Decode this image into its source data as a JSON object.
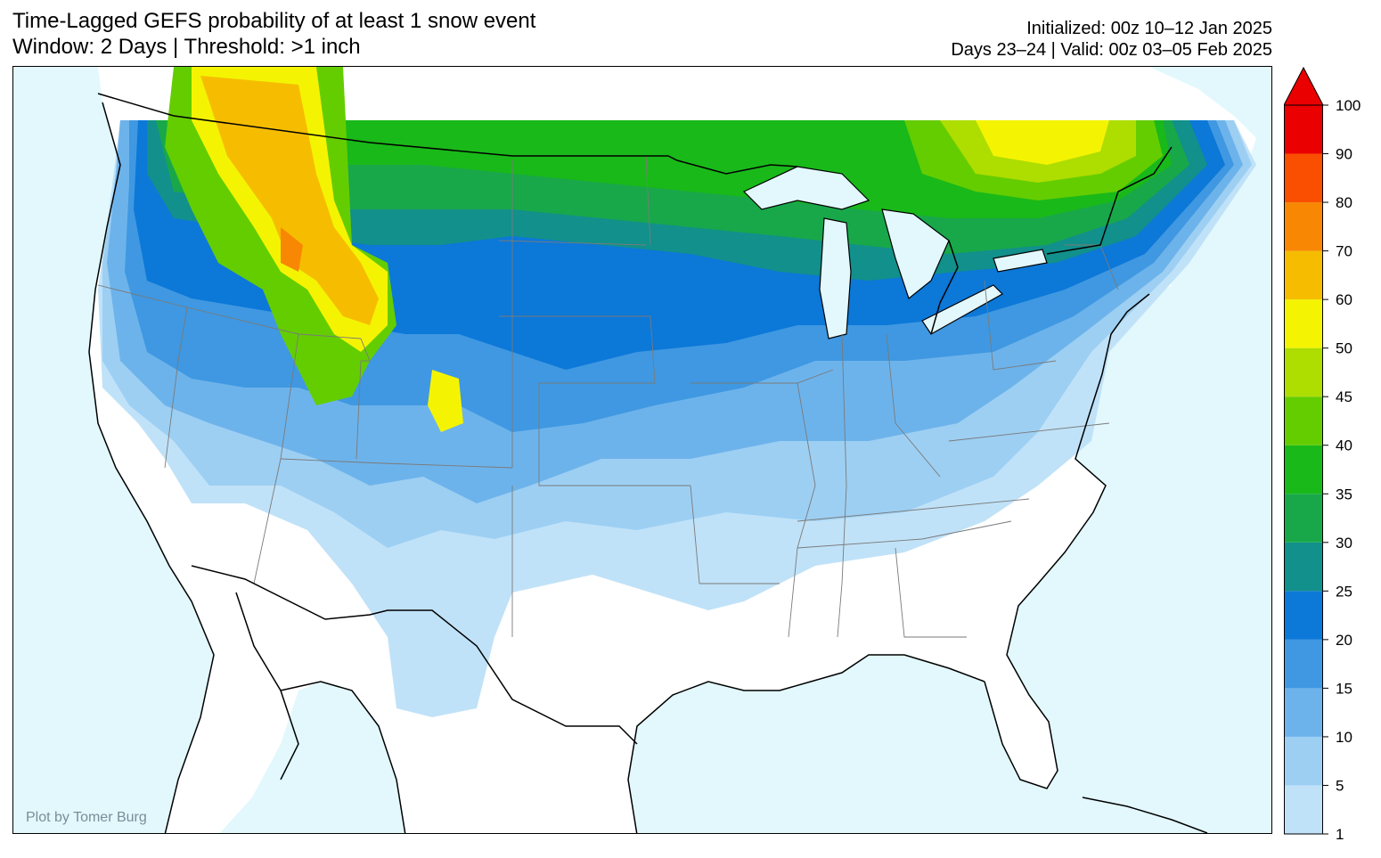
{
  "title": {
    "line1": "Time-Lagged GEFS probability of at least 1 snow event",
    "line2": "Window: 2 Days | Threshold: >1 inch"
  },
  "info": {
    "initialized": "Initialized: 00z 10–12 Jan 2025",
    "valid": "Days 23–24 | Valid: 00z 03–05 Feb 2025"
  },
  "credit": "Plot by Tomer Burg",
  "colors": {
    "ocean": "#e2f8fd",
    "land": "#ffffff",
    "border": "#000000",
    "state_lines": "#7a7a7a"
  },
  "colorbar": {
    "levels": [
      "1",
      "5",
      "10",
      "15",
      "20",
      "25",
      "30",
      "35",
      "40",
      "45",
      "50",
      "60",
      "70",
      "80",
      "90",
      "100"
    ],
    "colors": [
      "#c0e2f8",
      "#9dcff3",
      "#6db3eb",
      "#3f98e1",
      "#0c78d8",
      "#12908b",
      "#18a84a",
      "#19b919",
      "#64cd00",
      "#aedd00",
      "#f4f402",
      "#f6bd00",
      "#f88704",
      "#fa4f00",
      "#ea0000"
    ],
    "extend_arrow_color": "#ea0000"
  }
}
